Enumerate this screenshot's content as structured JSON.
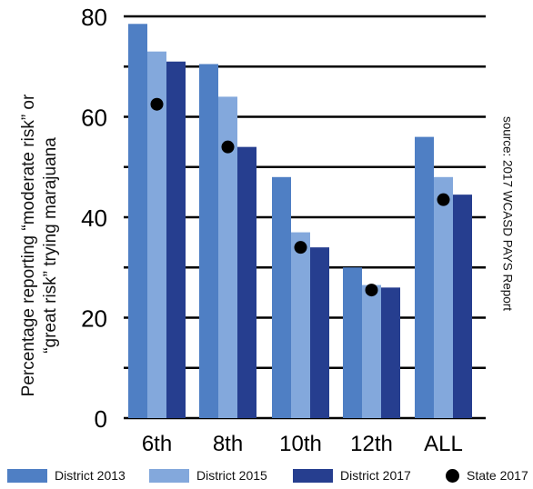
{
  "chart_data": {
    "type": "bar",
    "categories": [
      "6th",
      "8th",
      "10th",
      "12th",
      "ALL"
    ],
    "series": [
      {
        "name": "District 2013",
        "color": "#4f7fc4",
        "values": [
          78.5,
          70.5,
          48,
          30,
          56
        ]
      },
      {
        "name": "District 2015",
        "color": "#83a8dc",
        "values": [
          73,
          64,
          37,
          26.5,
          48
        ]
      },
      {
        "name": "District 2017",
        "color": "#263e8f",
        "values": [
          71,
          54,
          34,
          26,
          44.5
        ]
      }
    ],
    "markers": {
      "name": "State 2017",
      "color": "#000000",
      "values": [
        62.5,
        54,
        34,
        25.5,
        43.5
      ]
    },
    "ylabel_line1": "Percentage reporting “moderate risk” or",
    "ylabel_line2": "“great risk” trying marajuana",
    "source": "source: 2017 WCASD PAYS Report",
    "ylim": [
      0,
      80
    ],
    "yticks": [
      0,
      20,
      40,
      60,
      80
    ],
    "ytick_labels": [
      "0",
      "20",
      "40",
      "60",
      "80"
    ],
    "grid": true,
    "grid_step": 10,
    "legend_position": "bottom"
  }
}
